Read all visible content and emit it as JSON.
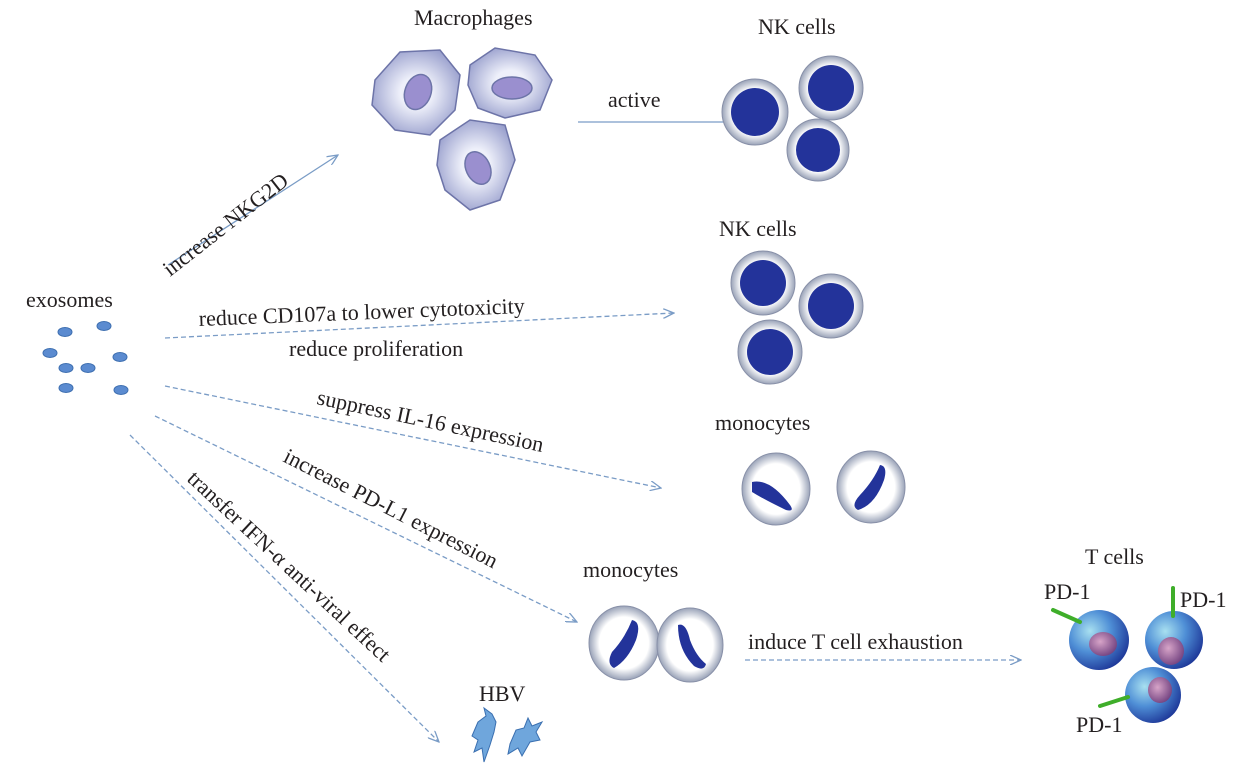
{
  "labels": {
    "exosomes": "exosomes",
    "macrophages": "Macrophages",
    "nk_cells_top": "NK cells",
    "nk_cells_mid": "NK cells",
    "monocytes_mid": "monocytes",
    "monocytes_bottom": "monocytes",
    "t_cells": "T cells",
    "hbv": "HBV",
    "pd1_a": "PD-1",
    "pd1_b": "PD-1",
    "pd1_c": "PD-1"
  },
  "edges": {
    "nkg2d": "increase NKG2D",
    "active": "active",
    "cd107a": "reduce CD107a to lower cytotoxicity",
    "proliferation": "reduce proliferation",
    "il16": "suppress IL-16 expression",
    "pdl1": "increase PD-L1 expression",
    "ifn": "transfer IFN-α anti-viral effect",
    "exhaustion": "induce T cell exhaustion"
  },
  "colors": {
    "arrow": "#7a9cc6",
    "exosome": "#5b8bd0",
    "nucleus": "#23339a",
    "macrophage": "#b7bde0",
    "pd1": "#3fae2a",
    "hbv": "#6fa6dc"
  }
}
